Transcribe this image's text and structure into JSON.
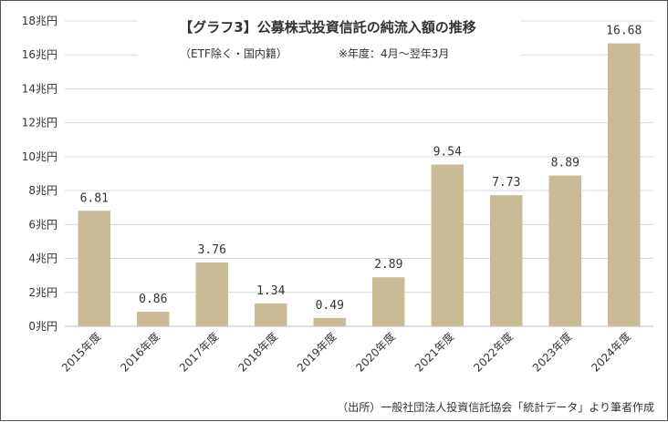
{
  "chart_data": {
    "type": "bar",
    "title": "【グラフ3】公募株式投資信託の純流入額の推移",
    "subtitle": "（ETF除く・国内籍）",
    "note": "※年度：4月～翌年3月",
    "source": "（出所）一般社団法人投資信託協会「統計データ」より筆者作成",
    "categories": [
      "2015年度",
      "2016年度",
      "2017年度",
      "2018年度",
      "2019年度",
      "2020年度",
      "2021年度",
      "2022年度",
      "2023年度",
      "2024年度"
    ],
    "values": [
      6.81,
      0.86,
      3.76,
      1.34,
      0.49,
      2.89,
      9.54,
      7.73,
      8.89,
      16.68
    ],
    "data_labels": [
      "6.81",
      "0.86",
      "3.76",
      "1.34",
      "0.49",
      "2.89",
      "9.54",
      "7.73",
      "8.89",
      "16.68"
    ],
    "yticks": [
      0,
      2,
      4,
      6,
      8,
      10,
      12,
      14,
      16,
      18
    ],
    "ytick_labels": [
      "0兆円",
      "2兆円",
      "4兆円",
      "6兆円",
      "8兆円",
      "10兆円",
      "12兆円",
      "14兆円",
      "16兆円",
      "18兆円"
    ],
    "ylim": [
      0,
      18
    ],
    "grid": true,
    "legend": "none",
    "bar_color": "#c8bb96",
    "grid_color": "#d9d9d9"
  }
}
